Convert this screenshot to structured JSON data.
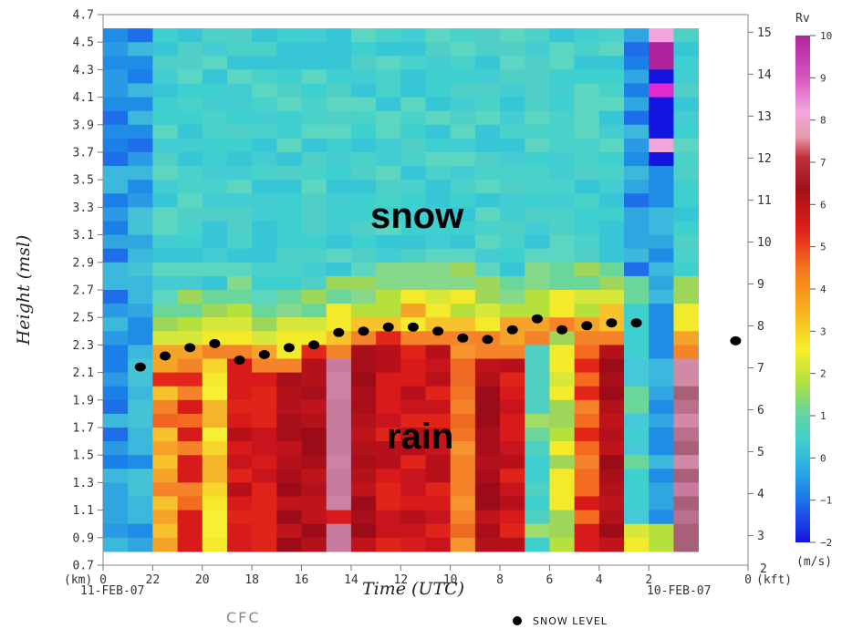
{
  "chart_data": {
    "type": "heatmap",
    "title": "",
    "variable_label": "Rv",
    "units_label": "(m/s)",
    "ylabel": "Height (msl)",
    "ylabel_right_units": "(kft)",
    "ylabel_left_units": "(km)",
    "xlabel": "Time (UTC)",
    "x_reversed": true,
    "x_range_hours": [
      0,
      26
    ],
    "x_ticks": [
      "0",
      "22",
      "20",
      "18",
      "16",
      "14",
      "12",
      "10",
      "8",
      "6",
      "4",
      "2",
      "0"
    ],
    "x_date_labels": {
      "left": "11-FEB-07",
      "right": "10-FEB-07"
    },
    "y_ticks_km": [
      "0.7",
      "0.9",
      "1.1",
      "1.3",
      "1.5",
      "1.7",
      "1.9",
      "2.1",
      "2.3",
      "2.5",
      "2.7",
      "2.9",
      "3.1",
      "3.3",
      "3.5",
      "3.7",
      "3.9",
      "4.1",
      "4.3",
      "4.5",
      "4.7"
    ],
    "y_ticks_kft": [
      "3",
      "4",
      "5",
      "6",
      "7",
      "8",
      "9",
      "10",
      "11",
      "12",
      "13",
      "14",
      "15"
    ],
    "y_kft_extra_label": "2",
    "y_range_km": [
      0.7,
      4.7
    ],
    "colorbar": {
      "ticks": [
        "10",
        "9",
        "8",
        "7",
        "6",
        "5",
        "4",
        "3",
        "2",
        "1",
        "0",
        "−1",
        "−2"
      ],
      "range": [
        -2,
        10
      ]
    },
    "annotations": {
      "upper": "snow",
      "lower": "rain"
    },
    "site_label": "CFC",
    "legend_label": "SNOW LEVEL",
    "snow_level": {
      "x_hours_from_left": [
        1.5,
        2.5,
        3.5,
        4.5,
        5.5,
        6.5,
        7.5,
        8.5,
        9.5,
        10.5,
        11.5,
        12.5,
        13.5,
        14.5,
        15.5,
        16.5,
        17.5,
        18.5,
        19.5,
        20.5,
        21.5,
        25.5
      ],
      "height_km": [
        2.14,
        2.22,
        2.28,
        2.31,
        2.19,
        2.23,
        2.28,
        2.3,
        2.39,
        2.4,
        2.43,
        2.43,
        2.4,
        2.35,
        2.34,
        2.41,
        2.49,
        2.41,
        2.44,
        2.46,
        2.46,
        2.33
      ]
    },
    "columns_note": "Vertical velocity (Rv) field per hourly column: top-of-data height, rain/snow transition and rain-region fill class",
    "columns": [
      {
        "top": 4.6,
        "type": "blue"
      },
      {
        "top": 4.6,
        "type": "blue2"
      },
      {
        "top": 4.6,
        "type": "snow",
        "base": 2.14,
        "rain": "orangeY"
      },
      {
        "top": 4.6,
        "type": "snow",
        "base": 2.22,
        "rain": "orangeR"
      },
      {
        "top": 4.6,
        "type": "snow",
        "base": 2.28,
        "rain": "yellow"
      },
      {
        "top": 4.6,
        "type": "snow",
        "base": 2.31,
        "rain": "red"
      },
      {
        "top": 4.6,
        "type": "snow",
        "base": 2.19,
        "rain": "red"
      },
      {
        "top": 4.6,
        "type": "snow",
        "base": 2.23,
        "rain": "darkred"
      },
      {
        "top": 4.6,
        "type": "snow",
        "base": 2.28,
        "rain": "darkred"
      },
      {
        "top": 4.6,
        "type": "snow",
        "base": 2.3,
        "rain": "pink"
      },
      {
        "top": 4.6,
        "type": "snow",
        "base": 2.39,
        "rain": "darkred"
      },
      {
        "top": 4.6,
        "type": "snow",
        "base": 2.4,
        "rain": "red"
      },
      {
        "top": 4.6,
        "type": "snow",
        "base": 2.43,
        "rain": "red"
      },
      {
        "top": 4.6,
        "type": "snow",
        "base": 2.43,
        "rain": "red"
      },
      {
        "top": 4.6,
        "type": "snow",
        "base": 2.4,
        "rain": "orange"
      },
      {
        "top": 4.6,
        "type": "snow",
        "base": 2.35,
        "rain": "darkred"
      },
      {
        "top": 4.6,
        "type": "snow",
        "base": 2.34,
        "rain": "red"
      },
      {
        "top": 4.6,
        "type": "snow",
        "base": 2.41,
        "rain": "cyan"
      },
      {
        "top": 4.6,
        "type": "snow",
        "base": 2.49,
        "rain": "green"
      },
      {
        "top": 4.6,
        "type": "snow",
        "base": 2.41,
        "rain": "orangeR"
      },
      {
        "top": 4.6,
        "type": "snow",
        "base": 2.44,
        "rain": "darkred"
      },
      {
        "top": 4.6,
        "type": "blue3"
      },
      {
        "top": 4.6,
        "type": "magenta"
      },
      {
        "top": 4.6,
        "type": "snow",
        "base": 2.33,
        "rain": "pinkdark"
      }
    ],
    "colors": {
      "snow_field": "#3ecfcf",
      "transition_yellow": "#f2ea2a",
      "red": "#d81a1a",
      "darkred": "#a90f1a",
      "orange": "#f4832a",
      "blue": "#1f8de6",
      "magenta": "#b0239c",
      "pink": "#c87b9e",
      "snow_dot": "#000000"
    }
  }
}
